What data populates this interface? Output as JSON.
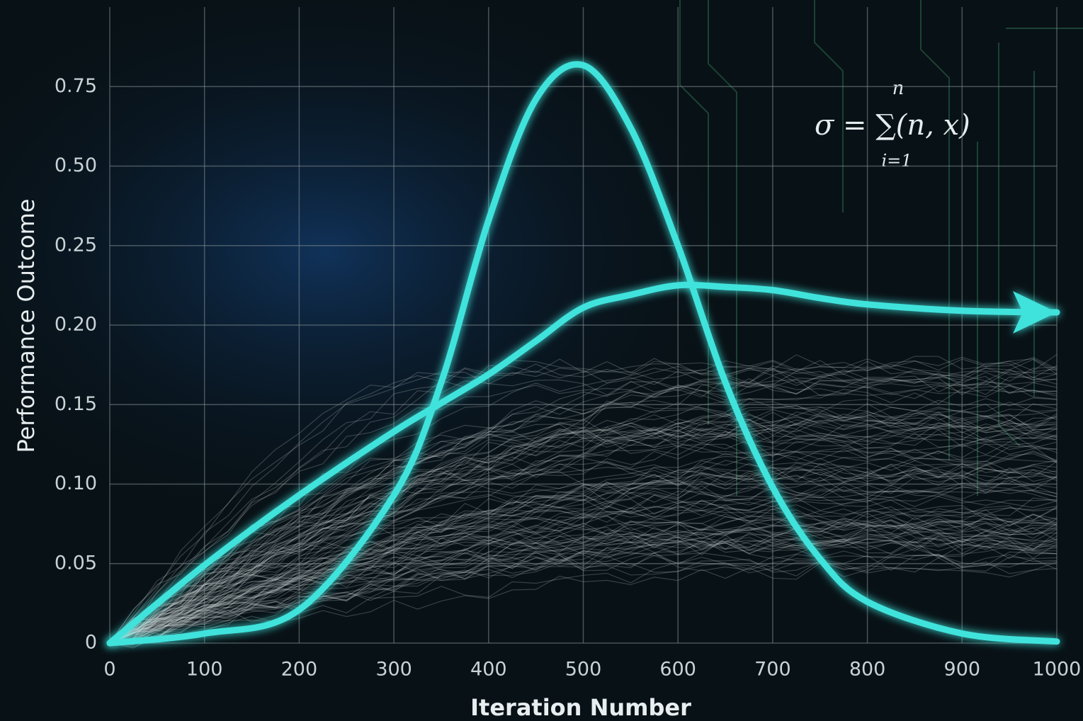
{
  "chart_data": {
    "type": "line",
    "x_label": "Iteration Number",
    "y_label": "Performance Outcome",
    "x": [
      0,
      100,
      200,
      300,
      350,
      400,
      450,
      500,
      550,
      600,
      650,
      700,
      750,
      800,
      900,
      1000
    ],
    "series": [
      {
        "color": "#3fe3dc",
        "values": [
          0,
          0.006,
          0.021,
          0.093,
          0.164,
          0.33,
          0.71,
          0.817,
          0.62,
          0.25,
          0.164,
          0.098,
          0.053,
          0.026,
          0.006,
          0.001
        ]
      },
      {
        "color": "#3fe3dc",
        "values": [
          0,
          0.049,
          0.093,
          0.133,
          0.151,
          0.169,
          0.19,
          0.211,
          0.219,
          0.225,
          0.224,
          0.222,
          0.217,
          0.213,
          0.209,
          0.208
        ],
        "arrow": true
      }
    ],
    "xlim": [
      0,
      1000
    ],
    "xticks": [
      0,
      100,
      200,
      300,
      400,
      500,
      600,
      700,
      800,
      900,
      1000
    ],
    "ylim": [
      0,
      1
    ],
    "yticks": [
      0,
      0.05,
      {
        "value": 0.1,
        "label": "0.10"
      },
      0.15,
      {
        "value": 0.2,
        "label": "0.20"
      },
      0.25,
      {
        "value": 0.5,
        "label": "0.50"
      },
      0.75
    ],
    "grid": true,
    "formula": {
      "main": "σ = ∑(n, x)",
      "upper": "n",
      "lower": "i=1"
    }
  }
}
